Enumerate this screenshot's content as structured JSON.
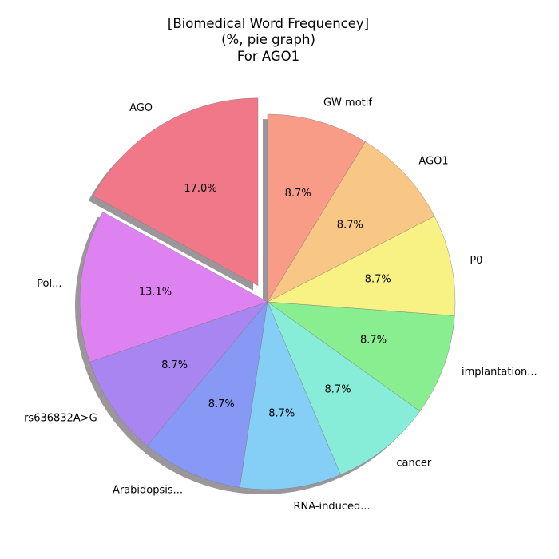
{
  "chart_data": {
    "type": "pie",
    "title": [
      "[Biomedical Word Frequencey]",
      "(%, pie graph)",
      "For AGO1"
    ],
    "categories": [
      "AGO",
      "Pol...",
      "rs636832A>G",
      "Arabidopsis...",
      "RNA-induced...",
      "cancer",
      "implantation...",
      "P0",
      "AGO1",
      "GW motif"
    ],
    "values": [
      17.0,
      13.1,
      8.7,
      8.7,
      8.7,
      8.7,
      8.7,
      8.7,
      8.7,
      8.7
    ],
    "value_labels": [
      "17.0%",
      "13.1%",
      "8.7%",
      "8.7%",
      "8.7%",
      "8.7%",
      "8.7%",
      "8.7%",
      "8.7%",
      "8.7%"
    ],
    "colors": [
      "#f07888",
      "#de82f2",
      "#a985f2",
      "#8799f4",
      "#85cff6",
      "#87ecd8",
      "#88ee8f",
      "#f8f285",
      "#f8c785",
      "#f99c87"
    ],
    "exploded": [
      "AGO"
    ],
    "start_angle_deg": 90,
    "direction": "counterclockwise",
    "shadow": true
  }
}
